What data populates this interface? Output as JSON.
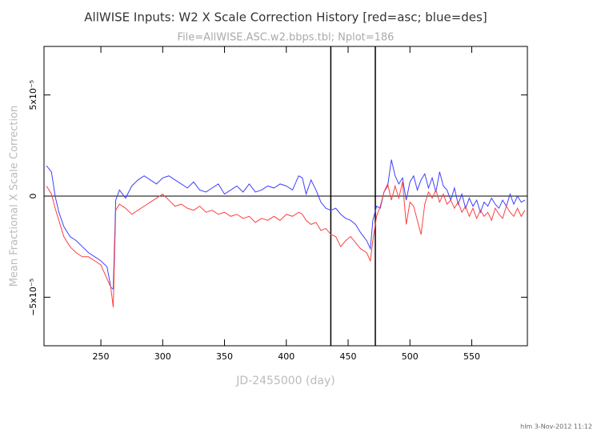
{
  "chart_data": {
    "type": "line",
    "title": "AllWISE Inputs: W2 X Scale Correction History [red=asc; blue=des]",
    "subtitle": "File=AllWISE.ASC.w2.bbps.tbl; Nplot=186",
    "x_label": "JD-2455000 (day)",
    "y_label": "Mean Fractional X Scale Correction",
    "footer": "hlm   3-Nov-2012 11:12",
    "xlim": [
      204,
      595
    ],
    "ylim": [
      -7.4e-05,
      7.4e-05
    ],
    "xticks": [
      250,
      300,
      350,
      400,
      450,
      500,
      550
    ],
    "yticks": [
      {
        "value": -5e-05,
        "label": "−5x10⁻⁵"
      },
      0,
      {
        "value": 5e-05,
        "label": "5x10⁻⁵"
      }
    ],
    "vlines": [
      436,
      472
    ],
    "x": [
      206,
      210,
      213,
      216,
      220,
      225,
      230,
      235,
      240,
      245,
      250,
      255,
      258,
      260,
      262,
      265,
      270,
      275,
      280,
      285,
      290,
      295,
      300,
      305,
      310,
      315,
      320,
      325,
      330,
      335,
      340,
      345,
      350,
      355,
      360,
      365,
      370,
      375,
      380,
      385,
      390,
      395,
      400,
      405,
      410,
      413,
      416,
      420,
      424,
      428,
      432,
      436,
      440,
      444,
      448,
      452,
      456,
      460,
      465,
      468,
      470,
      473,
      476,
      479,
      482,
      485,
      488,
      491,
      494,
      497,
      500,
      503,
      506,
      509,
      512,
      515,
      518,
      521,
      524,
      527,
      530,
      533,
      536,
      539,
      542,
      545,
      548,
      551,
      554,
      557,
      560,
      563,
      566,
      569,
      572,
      575,
      578,
      581,
      584,
      587,
      590,
      593
    ],
    "series": [
      {
        "name": "des",
        "color": "#4040ff",
        "values": [
          1.5e-05,
          1.2e-05,
          0,
          -8e-06,
          -1.5e-05,
          -2e-05,
          -2.2e-05,
          -2.5e-05,
          -2.8e-05,
          -3e-05,
          -3.2e-05,
          -3.5e-05,
          -4.5e-05,
          -4.6e-05,
          -2e-06,
          3e-06,
          -1e-06,
          5e-06,
          8e-06,
          1e-05,
          8e-06,
          6e-06,
          9e-06,
          1e-05,
          8e-06,
          6e-06,
          4e-06,
          7e-06,
          3e-06,
          2e-06,
          4e-06,
          6e-06,
          1e-06,
          3e-06,
          5e-06,
          2e-06,
          6e-06,
          2e-06,
          3e-06,
          5e-06,
          4e-06,
          6e-06,
          5e-06,
          3e-06,
          1e-05,
          9e-06,
          1e-06,
          8e-06,
          3e-06,
          -3e-06,
          -6e-06,
          -7e-06,
          -6e-06,
          -9e-06,
          -1.1e-05,
          -1.2e-05,
          -1.4e-05,
          -1.8e-05,
          -2.2e-05,
          -2.6e-05,
          -1.2e-05,
          -5e-06,
          -6e-06,
          2e-06,
          5e-06,
          1.8e-05,
          1e-05,
          6e-06,
          9e-06,
          -2e-06,
          7e-06,
          1e-05,
          3e-06,
          8e-06,
          1.1e-05,
          4e-06,
          9e-06,
          2e-06,
          1.2e-05,
          5e-06,
          3e-06,
          -2e-06,
          4e-06,
          -4e-06,
          1e-06,
          -6e-06,
          -1e-06,
          -5e-06,
          -2e-06,
          -8e-06,
          -3e-06,
          -5e-06,
          -1e-06,
          -4e-06,
          -6e-06,
          -2e-06,
          -5e-06,
          1e-06,
          -4e-06,
          0,
          -3e-06,
          -2e-06
        ]
      },
      {
        "name": "asc",
        "color": "#ff4040",
        "values": [
          5e-06,
          1e-06,
          -6e-06,
          -1.2e-05,
          -2e-05,
          -2.5e-05,
          -2.8e-05,
          -3e-05,
          -3e-05,
          -3.2e-05,
          -3.4e-05,
          -4.1e-05,
          -4.5e-05,
          -5.5e-05,
          -7e-06,
          -4e-06,
          -6e-06,
          -9e-06,
          -7e-06,
          -5e-06,
          -3e-06,
          -1e-06,
          1e-06,
          -2e-06,
          -5e-06,
          -4e-06,
          -6e-06,
          -7e-06,
          -5e-06,
          -8e-06,
          -7e-06,
          -9e-06,
          -8e-06,
          -1e-05,
          -9e-06,
          -1.1e-05,
          -1e-05,
          -1.3e-05,
          -1.1e-05,
          -1.2e-05,
          -1e-05,
          -1.2e-05,
          -9e-06,
          -1e-05,
          -8e-06,
          -9e-06,
          -1.2e-05,
          -1.4e-05,
          -1.3e-05,
          -1.7e-05,
          -1.6e-05,
          -1.9e-05,
          -2e-05,
          -2.5e-05,
          -2.2e-05,
          -2e-05,
          -2.3e-05,
          -2.6e-05,
          -2.8e-05,
          -3.2e-05,
          -2.2e-05,
          -1e-05,
          -5e-06,
          2e-06,
          6e-06,
          -2e-06,
          5e-06,
          -1e-06,
          7e-06,
          -1.4e-05,
          -3e-06,
          -5e-06,
          -1.2e-05,
          -1.9e-05,
          -4e-06,
          2e-06,
          -1e-06,
          3e-06,
          -3e-06,
          1e-06,
          -4e-06,
          -2e-06,
          -6e-06,
          -3e-06,
          -8e-06,
          -5e-06,
          -1e-05,
          -6e-06,
          -1.1e-05,
          -7e-06,
          -1e-05,
          -8e-06,
          -1.2e-05,
          -6e-06,
          -9e-06,
          -1.1e-05,
          -5e-06,
          -8e-06,
          -1e-05,
          -6e-06,
          -1e-05,
          -7e-06
        ]
      }
    ]
  }
}
